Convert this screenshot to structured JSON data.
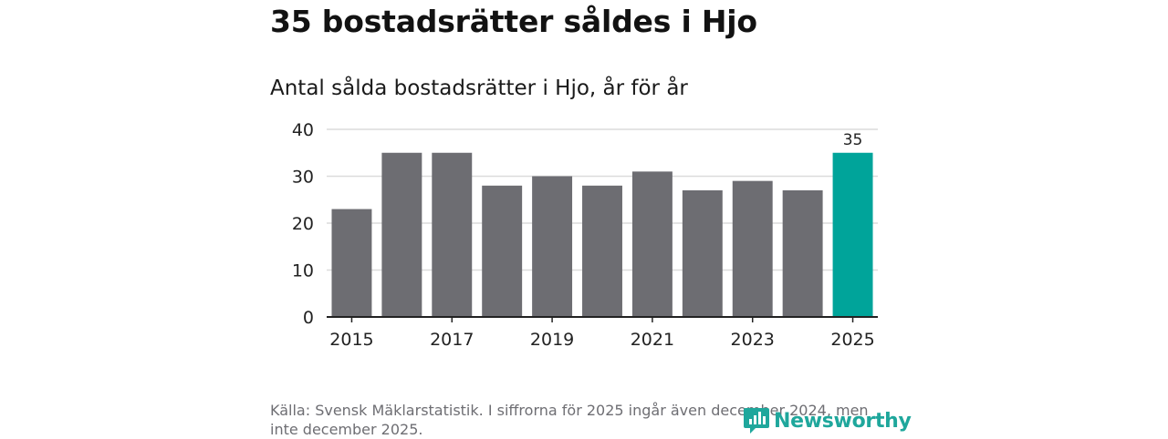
{
  "title": "35 bostadsrätter såldes i Hjo",
  "subtitle": "Antal sålda bostadsrätter i Hjo, år för år",
  "source": "Källa: Svensk Mäklarstatistik. I siffrorna för 2025 ingår även december 2024, men inte december 2025.",
  "logo": {
    "text": "Newsworthy",
    "icon": "newsworthy-logo-icon"
  },
  "colors": {
    "bar": "#6d6d72",
    "highlight": "#00a49a",
    "grid": "#dcdcdc",
    "axis": "#222222",
    "logo": "#1fa79c"
  },
  "chart_data": {
    "type": "bar",
    "title": "Antal sålda bostadsrätter i Hjo, år för år",
    "xlabel": "",
    "ylabel": "",
    "categories": [
      "2015",
      "2016",
      "2017",
      "2018",
      "2019",
      "2020",
      "2021",
      "2022",
      "2023",
      "2024",
      "2025"
    ],
    "values": [
      23,
      35,
      35,
      28,
      30,
      28,
      31,
      27,
      29,
      27,
      35
    ],
    "x_tick_labels": [
      "2015",
      "2017",
      "2019",
      "2021",
      "2023",
      "2025"
    ],
    "y_ticks": [
      0,
      10,
      20,
      30,
      40
    ],
    "ylim": [
      0,
      40
    ],
    "grid": true,
    "highlight_category": "2025",
    "data_labels": [
      {
        "category": "2025",
        "text": "35"
      }
    ]
  }
}
